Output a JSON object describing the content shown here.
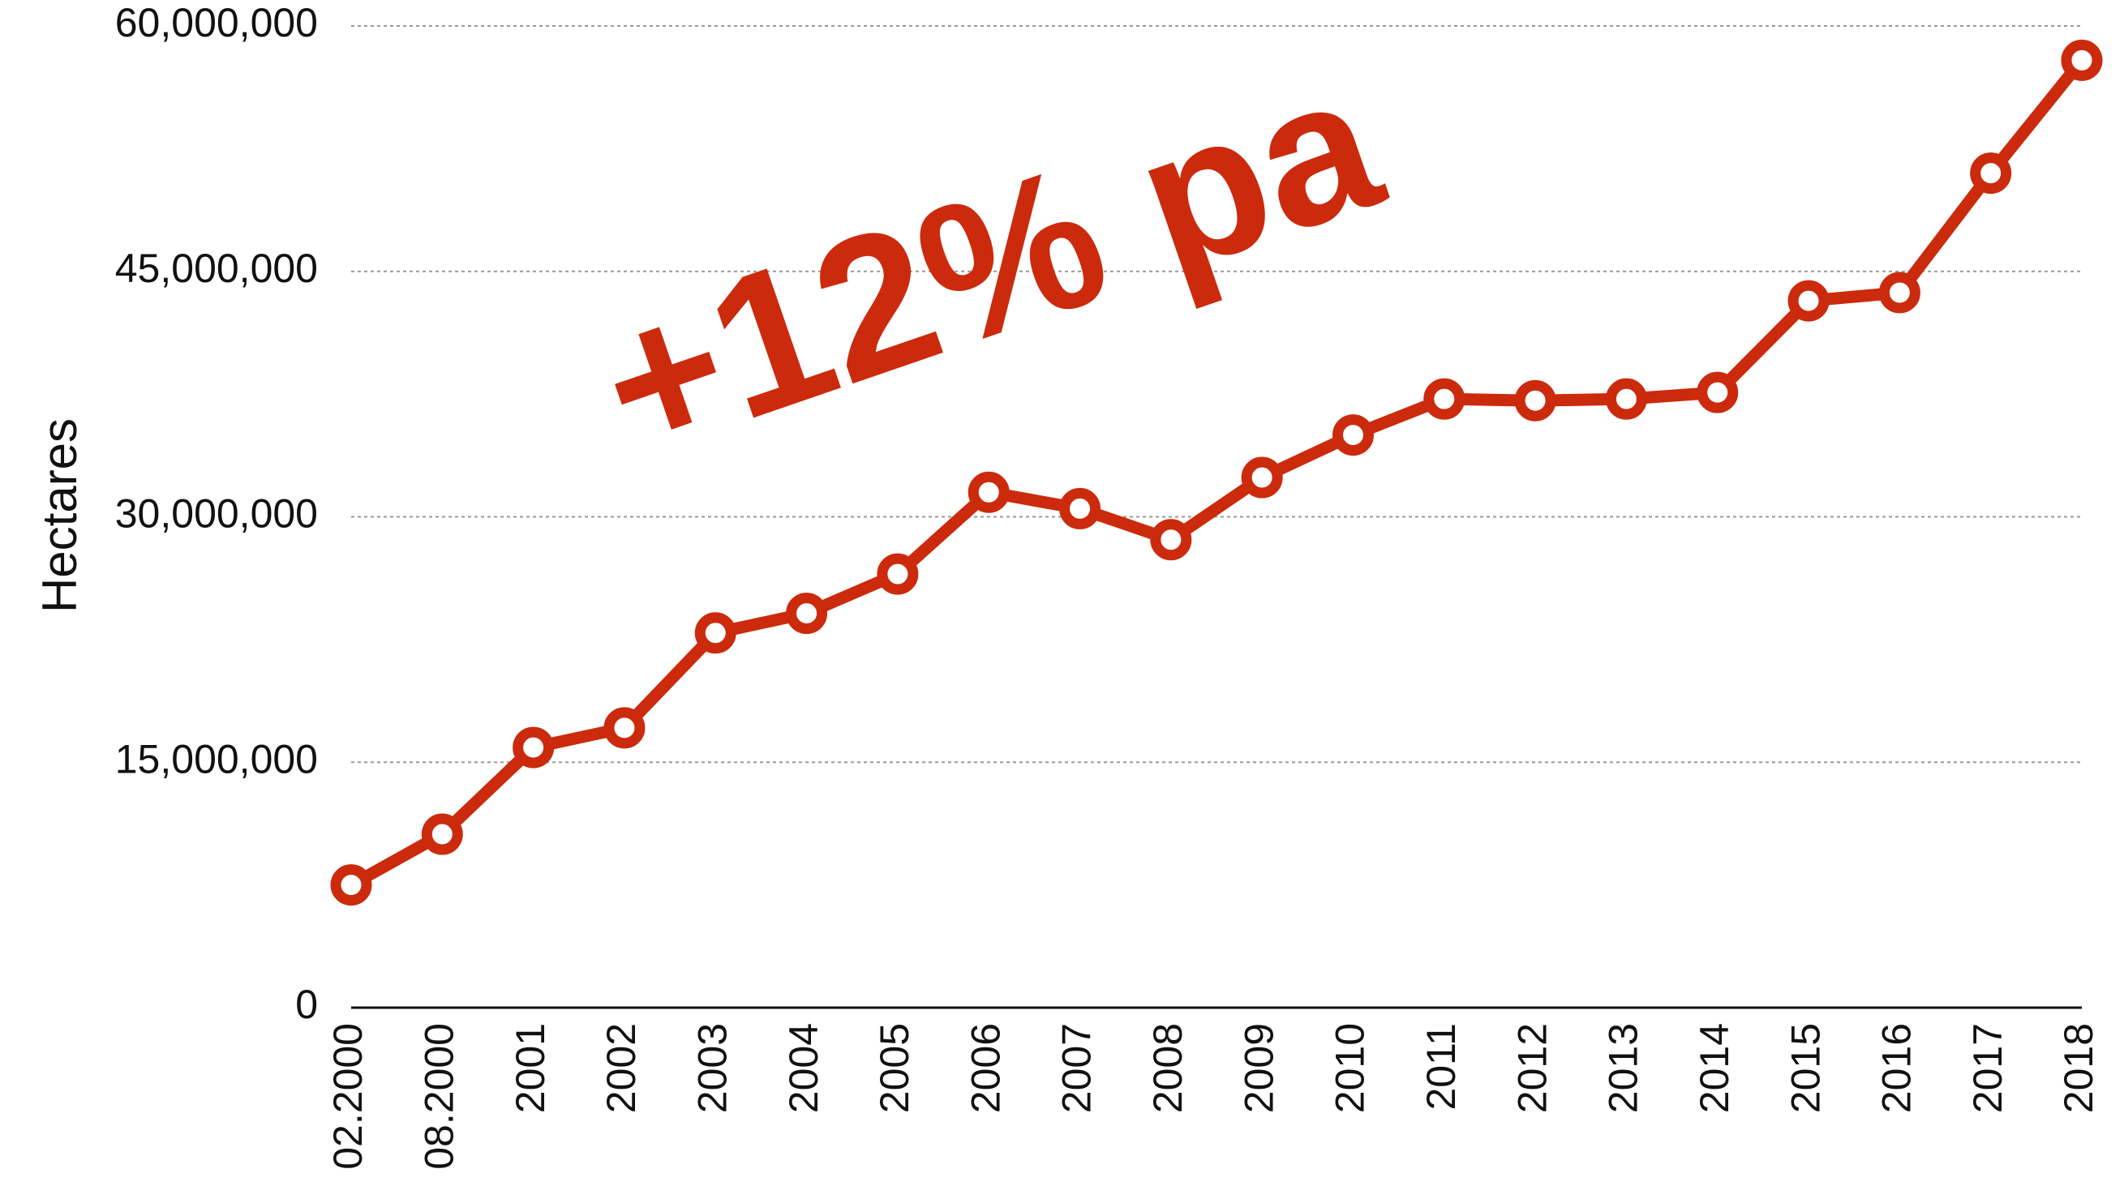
{
  "chart_data": {
    "type": "line",
    "y_label": "Hectares",
    "annotation": "+12% pa",
    "categories": [
      "02.2000",
      "08.2000",
      "2001",
      "2002",
      "2003",
      "2004",
      "2005",
      "2006",
      "2007",
      "2008",
      "2009",
      "2010",
      "2011",
      "2012",
      "2013",
      "2014",
      "2015",
      "2016",
      "2017",
      "2018"
    ],
    "values": [
      7500000,
      10600000,
      15900000,
      17100000,
      22900000,
      24100000,
      26500000,
      31500000,
      30500000,
      28600000,
      32400000,
      35000000,
      37200000,
      37100000,
      37200000,
      37600000,
      43200000,
      43700000,
      51000000,
      57900000
    ],
    "color": "#cc2a0c",
    "ylim": [
      0,
      60000000
    ],
    "yticks": [
      0,
      {
        "value": 15000000,
        "label": "15,000,000"
      },
      {
        "value": 30000000,
        "label": "30,000,000"
      },
      {
        "value": 45000000,
        "label": "45,000,000"
      },
      {
        "value": 60000000,
        "label": "60,000,000"
      }
    ],
    "grid": true
  }
}
